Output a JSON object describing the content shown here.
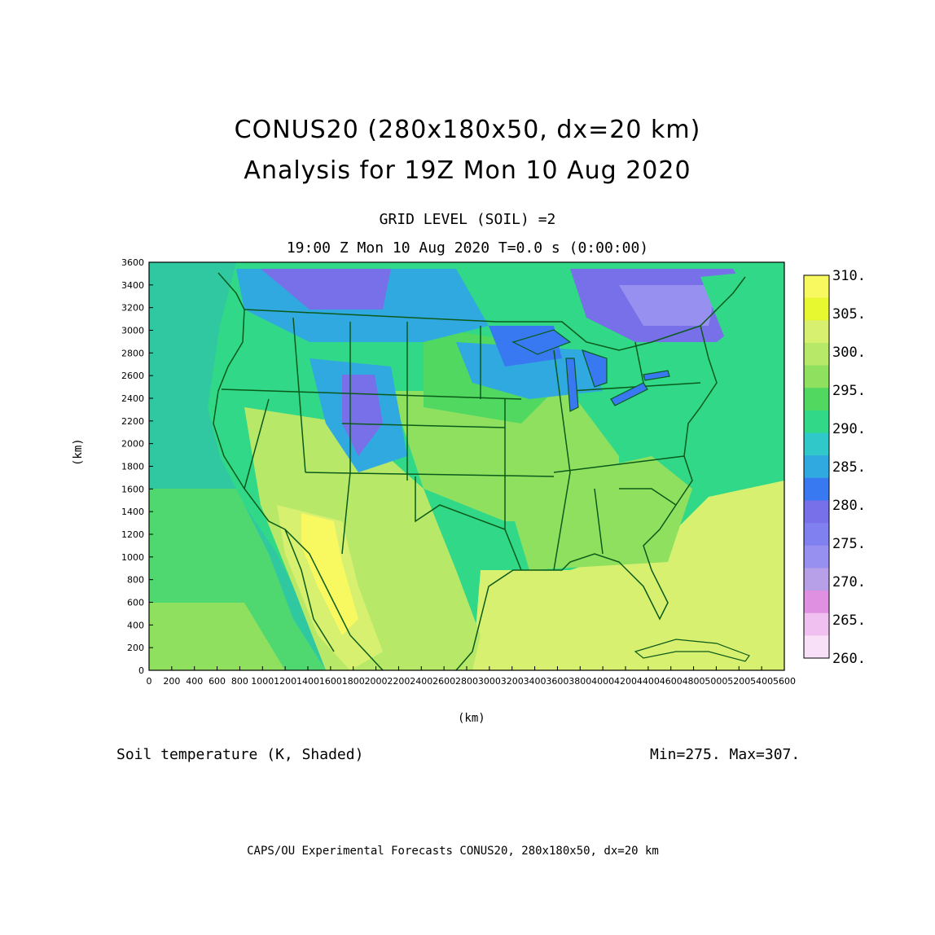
{
  "header": {
    "title_line1": "CONUS20 (280x180x50, dx=20 km)",
    "title_line2": "Analysis for 19Z Mon 10 Aug 2020",
    "grid_level": "GRID LEVEL (SOIL) =2",
    "time_line": "19:00 Z Mon 10 Aug 2020    T=0.0 s (0:00:00)"
  },
  "axes": {
    "xlabel": "(km)",
    "ylabel": "(km)",
    "x_ticks": [
      "0",
      "200",
      "400",
      "600",
      "800",
      "1000",
      "1200",
      "1400",
      "1600",
      "1800",
      "2000",
      "2200",
      "2400",
      "2600",
      "2800",
      "3000",
      "3200",
      "3400",
      "3600",
      "3800",
      "4000",
      "4200",
      "4400",
      "4600",
      "4800",
      "5000",
      "5200",
      "5400",
      "5600"
    ],
    "y_ticks": [
      "0",
      "200",
      "400",
      "600",
      "800",
      "1000",
      "1200",
      "1400",
      "1600",
      "1800",
      "2000",
      "2200",
      "2400",
      "2600",
      "2800",
      "3000",
      "3200",
      "3400",
      "3600"
    ],
    "xlim": [
      0,
      5600
    ],
    "ylim": [
      0,
      3600
    ]
  },
  "colorbar": {
    "labels": [
      "310.",
      "305.",
      "300.",
      "295.",
      "290.",
      "285.",
      "280.",
      "275.",
      "270.",
      "265.",
      "260."
    ],
    "colors": [
      "#f8f860",
      "#e8f830",
      "#d8f070",
      "#b8e868",
      "#90e060",
      "#50d860",
      "#30d888",
      "#30c8c8",
      "#30a8e0",
      "#3878f0",
      "#7870e8",
      "#8080f0",
      "#9890f0",
      "#b8a0e8",
      "#e090e0",
      "#f0c0f0",
      "#f8e0f8"
    ]
  },
  "footer": {
    "field": "Soil temperature (K, Shaded)",
    "minmax": "Min=275.  Max=307.",
    "credit": "CAPS/OU Experimental Forecasts   CONUS20, 280x180x50, dx=20 km"
  },
  "map": {
    "ocean_color": "#50d860",
    "coast_color": "#0a5a1a"
  }
}
